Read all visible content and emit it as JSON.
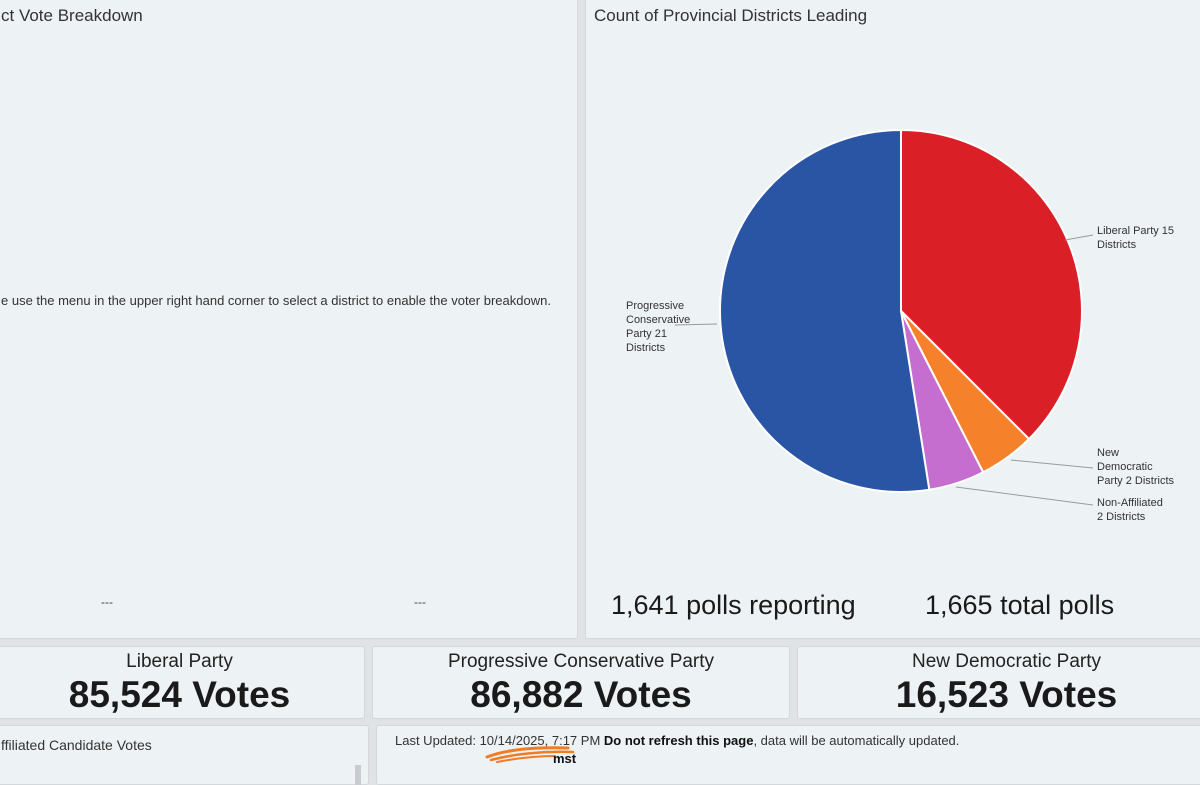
{
  "left_panel": {
    "title": "ct Vote Breakdown",
    "notice": "e use the menu in the upper right hand corner to select a district to enable the voter breakdown.",
    "placeholder_1": "---",
    "placeholder_2": "---"
  },
  "right_panel": {
    "title": "Count of Provincial Districts Leading",
    "polls_reporting": "1,641 polls reporting",
    "total_polls": "1,665 total polls"
  },
  "chart_data": {
    "type": "pie",
    "title": "Count of Provincial Districts Leading",
    "slices": [
      {
        "label": "Liberal Party 15 Districts",
        "value": 15,
        "color": "#db1f26"
      },
      {
        "label": "New Democratic Party 2 Districts",
        "value": 2,
        "color": "#f5812a"
      },
      {
        "label": "Non-Affiliated 2 Districts",
        "value": 2,
        "color": "#c56ed0"
      },
      {
        "label": "Progressive Conservative Party 21 Districts",
        "value": 21,
        "color": "#2a55a5"
      }
    ]
  },
  "vote_cards": [
    {
      "party": "Liberal Party",
      "votes": "85,524 Votes"
    },
    {
      "party": "Progressive Conservative Party",
      "votes": "86,882 Votes"
    },
    {
      "party": "New Democratic Party",
      "votes": "16,523 Votes"
    }
  ],
  "non_affiliated_card": {
    "title": "ffiliated Candidate Votes"
  },
  "footer": {
    "last_updated_label": "Last Updated:",
    "timestamp": "10/14/2025, 7:17 PM",
    "do_not_refresh": "Do not refresh this page",
    "auto_update": ", data will be automatically updated.",
    "timezone_note": "mst"
  }
}
